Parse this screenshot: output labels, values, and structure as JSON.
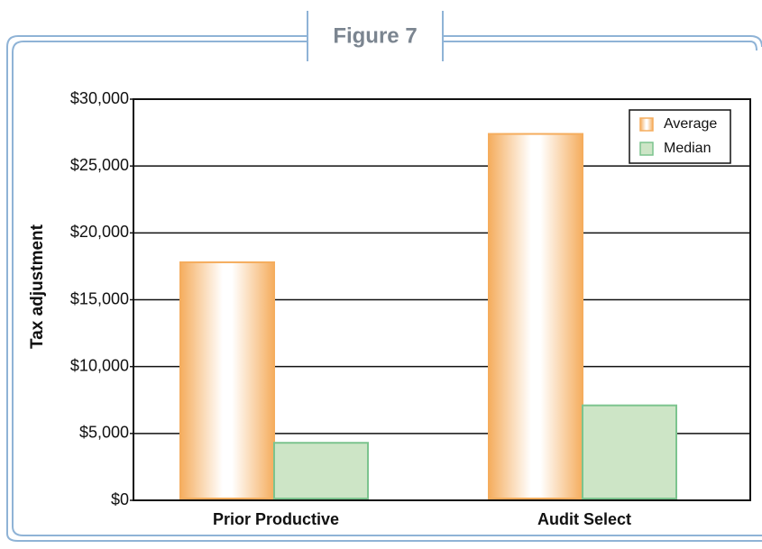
{
  "chart_data": {
    "type": "bar",
    "title": "Figure 7",
    "y_label": "Tax adjustment",
    "categories": [
      "Prior Productive",
      "Audit Select"
    ],
    "series": [
      {
        "name": "Average",
        "color": "#f5ad5e",
        "values": [
          17800,
          27400
        ]
      },
      {
        "name": "Median",
        "color": "#cde5c6",
        "values": [
          4300,
          7100
        ]
      }
    ],
    "ylim": [
      0,
      30000
    ],
    "yticks": [
      {
        "value": 0,
        "label": "$0"
      },
      {
        "value": 5000,
        "label": "$5,000"
      },
      {
        "value": 10000,
        "label": "$10,000"
      },
      {
        "value": 15000,
        "label": "$15,000"
      },
      {
        "value": 20000,
        "label": "$20,000"
      },
      {
        "value": 25000,
        "label": "$25,000"
      },
      {
        "value": 30000,
        "label": "$30,000"
      }
    ],
    "grid": true,
    "legend": "upper right"
  }
}
